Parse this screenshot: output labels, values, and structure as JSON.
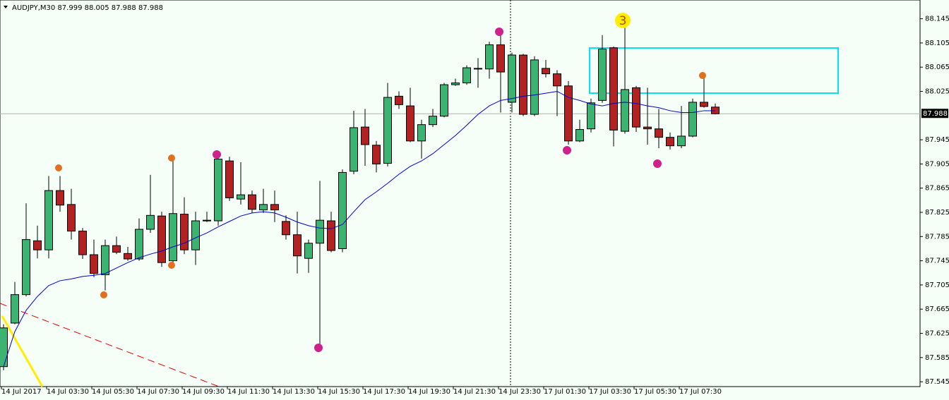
{
  "chart_data": {
    "type": "candlestick",
    "title": "AUDJPY,M30  87.999 88.005 87.988 87.988",
    "categories": [
      "14 Jul 2017",
      null,
      null,
      null,
      "14 Jul 03:30",
      null,
      null,
      null,
      "14 Jul 05:30",
      null,
      null,
      null,
      "14 Jul 07:30",
      null,
      null,
      null,
      "14 Jul 09:30",
      null,
      null,
      null,
      "14 Jul 11:30",
      null,
      null,
      null,
      "14 Jul 13:30",
      null,
      null,
      null,
      "14 Jul 15:30",
      null,
      null,
      null,
      "14 Jul 17:30",
      null,
      null,
      null,
      "14 Jul 19:30",
      null,
      null,
      null,
      "14 Jul 21:30",
      null,
      null,
      null,
      "14 Jul 23:30",
      null,
      null,
      null,
      "17 Jul 01:30",
      null,
      null,
      null,
      "17 Jul 03:30",
      null,
      null,
      null,
      "17 Jul 05:30",
      null,
      null,
      null,
      "17 Jul 07:30",
      null,
      null,
      null
    ],
    "open": [
      87.57,
      87.642,
      87.689,
      87.778,
      87.763,
      87.861,
      87.838,
      87.794,
      87.755,
      87.722,
      87.77,
      87.757,
      87.748,
      87.797,
      87.819,
      87.745,
      87.822,
      87.763,
      87.812,
      87.811,
      87.91,
      87.847,
      87.854,
      87.829,
      87.838,
      87.81,
      87.788,
      87.749,
      87.774,
      87.811,
      87.765,
      87.893,
      87.966,
      87.936,
      87.906,
      88.017,
      88.001,
      87.943,
      87.97,
      87.984,
      88.036,
      88.039,
      88.062,
      88.062,
      88.102,
      88.007,
      88.085,
      87.987,
      88.063,
      88.054,
      88.034,
      87.943,
      87.963,
      88.01,
      88.097,
      87.959,
      88.031,
      87.966,
      87.963,
      87.949,
      87.935,
      87.951,
      88.007,
      87.999
    ],
    "high": [
      87.64,
      87.71,
      87.84,
      87.803,
      87.885,
      87.885,
      87.864,
      87.799,
      87.78,
      87.78,
      87.785,
      87.768,
      87.815,
      87.887,
      87.826,
      87.92,
      87.85,
      87.826,
      87.826,
      87.92,
      87.917,
      87.908,
      87.861,
      87.864,
      87.861,
      87.82,
      87.826,
      87.78,
      87.877,
      87.826,
      87.896,
      87.993,
      87.996,
      87.943,
      88.039,
      88.025,
      88.031,
      87.978,
      87.996,
      88.039,
      88.046,
      88.068,
      88.08,
      88.107,
      88.118,
      88.089,
      88.087,
      88.083,
      88.077,
      88.06,
      88.042,
      87.978,
      88.013,
      88.118,
      88.099,
      88.13,
      88.034,
      88.031,
      87.996,
      87.957,
      88.001,
      88.013,
      88.048,
      88.005
    ],
    "low": [
      87.564,
      87.64,
      87.686,
      87.749,
      87.749,
      87.826,
      87.78,
      87.748,
      87.718,
      87.696,
      87.756,
      87.745,
      87.745,
      87.791,
      87.735,
      87.742,
      87.756,
      87.738,
      87.809,
      87.803,
      87.844,
      87.838,
      87.824,
      87.824,
      87.809,
      87.78,
      87.724,
      87.725,
      87.601,
      87.759,
      87.759,
      87.888,
      87.902,
      87.891,
      87.901,
      87.996,
      87.941,
      87.914,
      87.966,
      87.982,
      88.034,
      88.036,
      88.031,
      88.046,
      87.99,
      87.99,
      87.984,
      87.984,
      88.048,
      87.984,
      87.937,
      87.941,
      87.957,
      88.006,
      87.934,
      87.955,
      87.958,
      87.937,
      87.931,
      87.929,
      87.931,
      87.949,
      87.998,
      87.987
    ],
    "close": [
      87.634,
      87.689,
      87.78,
      87.763,
      87.861,
      87.837,
      87.794,
      87.755,
      87.724,
      87.77,
      87.759,
      87.748,
      87.797,
      87.82,
      87.742,
      87.823,
      87.763,
      87.811,
      87.811,
      87.913,
      87.849,
      87.854,
      87.83,
      87.838,
      87.829,
      87.788,
      87.753,
      87.774,
      87.812,
      87.762,
      87.891,
      87.965,
      87.937,
      87.905,
      88.015,
      88.003,
      87.943,
      87.97,
      87.984,
      88.036,
      88.039,
      88.064,
      88.063,
      88.102,
      88.057,
      88.085,
      87.987,
      88.077,
      88.054,
      88.034,
      87.943,
      87.962,
      88.006,
      88.095,
      87.961,
      88.028,
      87.966,
      87.963,
      87.949,
      87.935,
      87.951,
      88.007,
      88.0,
      87.988
    ],
    "ma": {
      "color": "#0000cd",
      "values": [
        87.57,
        87.628,
        87.663,
        87.686,
        87.704,
        87.712,
        87.715,
        87.719,
        87.721,
        87.724,
        87.733,
        87.742,
        87.75,
        87.756,
        87.761,
        87.768,
        87.774,
        87.783,
        87.791,
        87.801,
        87.81,
        87.819,
        87.824,
        87.826,
        87.824,
        87.817,
        87.809,
        87.803,
        87.799,
        87.798,
        87.805,
        87.826,
        87.846,
        87.859,
        87.873,
        87.888,
        87.901,
        87.91,
        87.922,
        87.937,
        87.952,
        87.969,
        87.987,
        88.001,
        88.01,
        88.013,
        88.017,
        88.019,
        88.022,
        88.025,
        88.015,
        88.01,
        88.004,
        88.001,
        88.005,
        88.007,
        88.005,
        88.001,
        87.998,
        87.993,
        87.99,
        87.99,
        87.993,
        87.993
      ]
    },
    "up_color": "#3cb371",
    "down_color": "#b22222",
    "current_price": 87.988,
    "annotation": "3",
    "ylim": [
      87.537,
      88.176
    ],
    "yticks": [
      88.145,
      88.105,
      88.065,
      88.025,
      87.945,
      87.905,
      87.865,
      87.825,
      87.785,
      87.745,
      87.705,
      87.665,
      87.625,
      87.585,
      87.545
    ],
    "grid": false
  }
}
